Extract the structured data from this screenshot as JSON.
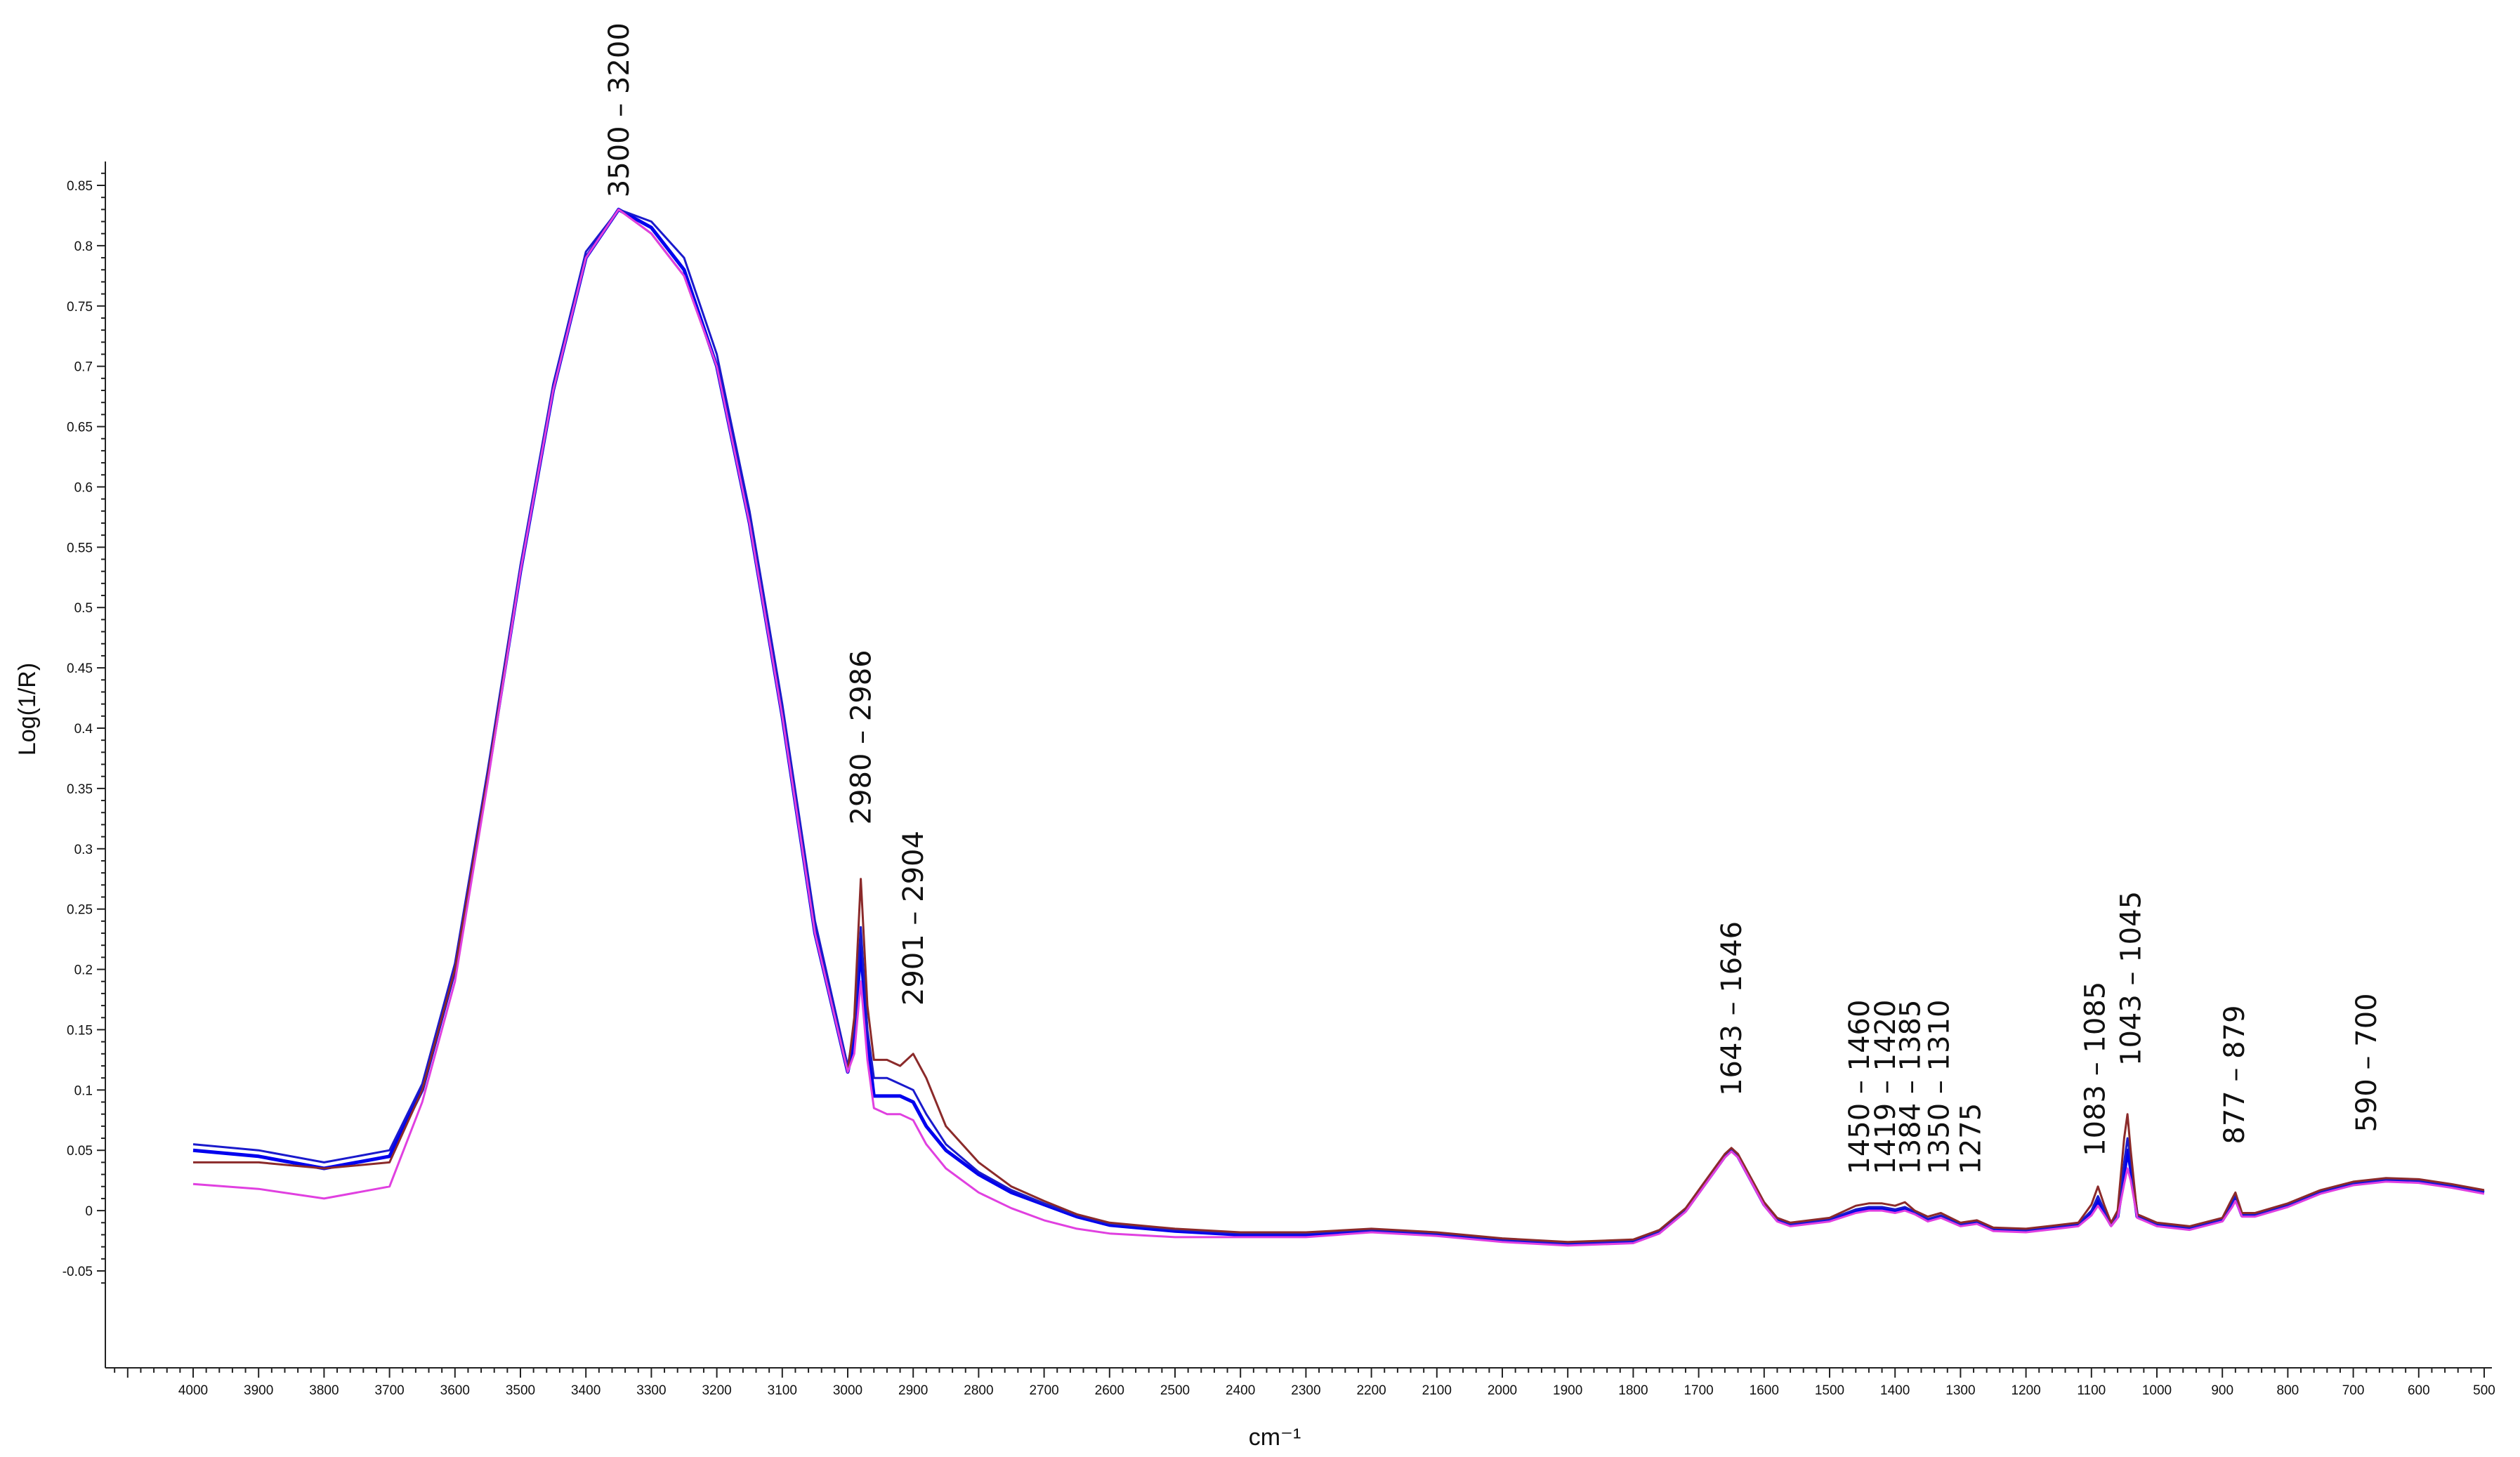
{
  "chart_data": {
    "type": "line",
    "title": "",
    "xlabel": "cm⁻¹",
    "ylabel": "Log(1/R)",
    "x_reversed": true,
    "xlim": [
      4000,
      500
    ],
    "ylim": [
      -0.05,
      0.85
    ],
    "grid": false,
    "legend": "none",
    "x_ticks": [
      4000,
      3900,
      3800,
      3700,
      3600,
      3500,
      3400,
      3300,
      3200,
      3100,
      3000,
      2900,
      2800,
      2700,
      2600,
      2500,
      2400,
      2300,
      2200,
      2100,
      2000,
      1900,
      1800,
      1700,
      1600,
      1500,
      1400,
      1300,
      1200,
      1100,
      1000,
      900,
      800,
      700,
      600,
      500
    ],
    "x_tick_labels": [
      "4000",
      "3900",
      "3800",
      "3700",
      "3600",
      "3500",
      "3400",
      "3300",
      "3200",
      "3100",
      "3000",
      "2900",
      "2800",
      "2700",
      "2600",
      "2500",
      "2400",
      "2300",
      "2200",
      "2100",
      "2000",
      "1900",
      "1800",
      "1700",
      "1600",
      "1500",
      "1400",
      "1300",
      "1200",
      "1100",
      "1000",
      "900",
      "800",
      "700",
      "600",
      "500"
    ],
    "y_ticks": [
      -0.05,
      0,
      0.05,
      0.1,
      0.15,
      0.2,
      0.25,
      0.3,
      0.35,
      0.4,
      0.45,
      0.5,
      0.55,
      0.6,
      0.65,
      0.7,
      0.75,
      0.8,
      0.85
    ],
    "y_tick_labels": [
      "-0.05",
      "0",
      "0.05",
      "0.1",
      "0.15",
      "0.2",
      "0.25",
      "0.3",
      "0.35",
      "0.4",
      "0.45",
      "0.5",
      "0.55",
      "0.6",
      "0.65",
      "0.7",
      "0.75",
      "0.8",
      "0.85"
    ],
    "annotations": [
      {
        "text": "3500 – 3200",
        "x": 3350,
        "y": 0.84
      },
      {
        "text": "2980 – 2986",
        "x": 2980,
        "y": 0.32
      },
      {
        "text": "2901 – 2904",
        "x": 2900,
        "y": 0.17
      },
      {
        "text": "1643 – 1646",
        "x": 1650,
        "y": 0.095
      },
      {
        "text": "1450 – 1460",
        "x": 1455,
        "y": 0.03
      },
      {
        "text": "1419 – 1420",
        "x": 1415,
        "y": 0.03
      },
      {
        "text": "1384 – 1385",
        "x": 1377,
        "y": 0.03
      },
      {
        "text": "1350 – 1310",
        "x": 1333,
        "y": 0.03
      },
      {
        "text": "1275",
        "x": 1285,
        "y": 0.03
      },
      {
        "text": "1083 – 1085",
        "x": 1095,
        "y": 0.045
      },
      {
        "text": "1043 – 1045",
        "x": 1040,
        "y": 0.12
      },
      {
        "text": "877 – 879",
        "x": 882,
        "y": 0.055
      },
      {
        "text": "590 – 700",
        "x": 680,
        "y": 0.065
      }
    ],
    "series": [
      {
        "color": "#0000ee",
        "x": [
          4000,
          3900,
          3800,
          3700,
          3650,
          3600,
          3550,
          3500,
          3450,
          3400,
          3350,
          3300,
          3250,
          3200,
          3150,
          3100,
          3050,
          3000,
          2990,
          2980,
          2970,
          2960,
          2940,
          2920,
          2900,
          2880,
          2850,
          2800,
          2750,
          2700,
          2650,
          2600,
          2500,
          2400,
          2300,
          2200,
          2100,
          2000,
          1900,
          1800,
          1760,
          1720,
          1700,
          1680,
          1660,
          1650,
          1640,
          1620,
          1600,
          1580,
          1560,
          1500,
          1460,
          1440,
          1420,
          1400,
          1385,
          1370,
          1350,
          1330,
          1300,
          1275,
          1250,
          1200,
          1120,
          1100,
          1090,
          1080,
          1070,
          1060,
          1050,
          1045,
          1040,
          1030,
          1000,
          950,
          900,
          885,
          880,
          870,
          850,
          800,
          750,
          700,
          650,
          600,
          550,
          500
        ],
        "y": [
          0.05,
          0.045,
          0.035,
          0.045,
          0.1,
          0.2,
          0.36,
          0.53,
          0.68,
          0.79,
          0.83,
          0.815,
          0.78,
          0.7,
          0.57,
          0.41,
          0.23,
          0.115,
          0.14,
          0.22,
          0.14,
          0.095,
          0.095,
          0.095,
          0.09,
          0.07,
          0.05,
          0.03,
          0.015,
          0.005,
          -0.005,
          -0.012,
          -0.017,
          -0.02,
          -0.02,
          -0.017,
          -0.02,
          -0.025,
          -0.028,
          -0.026,
          -0.018,
          0.0,
          0.015,
          0.03,
          0.045,
          0.05,
          0.045,
          0.025,
          0.005,
          -0.008,
          -0.012,
          -0.008,
          0.0,
          0.002,
          0.002,
          0.0,
          0.002,
          -0.002,
          -0.008,
          -0.005,
          -0.012,
          -0.01,
          -0.016,
          -0.017,
          -0.012,
          -0.002,
          0.008,
          -0.002,
          -0.012,
          -0.005,
          0.03,
          0.05,
          0.035,
          -0.005,
          -0.012,
          -0.015,
          -0.008,
          0.005,
          0.01,
          -0.004,
          -0.004,
          0.004,
          0.015,
          0.022,
          0.025,
          0.024,
          0.02,
          0.015
        ]
      },
      {
        "color": "#1a1acc",
        "x": [
          4000,
          3900,
          3800,
          3700,
          3650,
          3600,
          3550,
          3500,
          3450,
          3400,
          3350,
          3300,
          3250,
          3200,
          3150,
          3100,
          3050,
          3000,
          2990,
          2980,
          2970,
          2960,
          2940,
          2920,
          2900,
          2880,
          2850,
          2800,
          2750,
          2700,
          2650,
          2600,
          2500,
          2400,
          2300,
          2200,
          2100,
          2000,
          1900,
          1800,
          1760,
          1720,
          1700,
          1680,
          1660,
          1650,
          1640,
          1620,
          1600,
          1580,
          1560,
          1500,
          1460,
          1440,
          1420,
          1400,
          1385,
          1370,
          1350,
          1330,
          1300,
          1275,
          1250,
          1200,
          1120,
          1100,
          1090,
          1080,
          1070,
          1060,
          1050,
          1045,
          1040,
          1030,
          1000,
          950,
          900,
          885,
          880,
          870,
          850,
          800,
          750,
          700,
          650,
          600,
          550,
          500
        ],
        "y": [
          0.055,
          0.05,
          0.04,
          0.05,
          0.105,
          0.205,
          0.365,
          0.535,
          0.685,
          0.795,
          0.83,
          0.82,
          0.79,
          0.71,
          0.58,
          0.42,
          0.24,
          0.12,
          0.15,
          0.235,
          0.15,
          0.11,
          0.11,
          0.105,
          0.1,
          0.08,
          0.055,
          0.032,
          0.017,
          0.006,
          -0.004,
          -0.011,
          -0.016,
          -0.019,
          -0.019,
          -0.016,
          -0.019,
          -0.024,
          -0.027,
          -0.025,
          -0.017,
          0.001,
          0.016,
          0.031,
          0.046,
          0.051,
          0.046,
          0.026,
          0.006,
          -0.007,
          -0.011,
          -0.007,
          0.001,
          0.003,
          0.003,
          0.001,
          0.003,
          -0.001,
          -0.007,
          -0.004,
          -0.011,
          -0.009,
          -0.015,
          -0.016,
          -0.011,
          0.0,
          0.012,
          0.0,
          -0.011,
          -0.003,
          0.04,
          0.06,
          0.042,
          -0.004,
          -0.011,
          -0.014,
          -0.007,
          0.007,
          0.012,
          -0.003,
          -0.003,
          0.005,
          0.016,
          0.023,
          0.026,
          0.025,
          0.021,
          0.016
        ]
      },
      {
        "color": "#8b2a2a",
        "x": [
          4000,
          3900,
          3800,
          3700,
          3650,
          3600,
          3550,
          3500,
          3450,
          3400,
          3350,
          3300,
          3250,
          3200,
          3150,
          3100,
          3050,
          3000,
          2990,
          2980,
          2970,
          2960,
          2940,
          2920,
          2900,
          2880,
          2850,
          2800,
          2750,
          2700,
          2650,
          2600,
          2500,
          2400,
          2300,
          2200,
          2100,
          2000,
          1900,
          1800,
          1760,
          1720,
          1700,
          1680,
          1660,
          1650,
          1640,
          1620,
          1600,
          1580,
          1560,
          1500,
          1460,
          1440,
          1420,
          1400,
          1385,
          1370,
          1350,
          1330,
          1300,
          1275,
          1250,
          1200,
          1120,
          1100,
          1090,
          1080,
          1070,
          1060,
          1050,
          1045,
          1040,
          1030,
          1000,
          950,
          900,
          885,
          880,
          870,
          850,
          800,
          750,
          700,
          650,
          600,
          550,
          500
        ],
        "y": [
          0.04,
          0.04,
          0.035,
          0.04,
          0.1,
          0.2,
          0.36,
          0.53,
          0.68,
          0.79,
          0.83,
          0.81,
          0.775,
          0.7,
          0.57,
          0.41,
          0.23,
          0.115,
          0.16,
          0.275,
          0.17,
          0.125,
          0.125,
          0.12,
          0.13,
          0.11,
          0.07,
          0.04,
          0.02,
          0.008,
          -0.003,
          -0.01,
          -0.015,
          -0.018,
          -0.018,
          -0.015,
          -0.018,
          -0.023,
          -0.026,
          -0.024,
          -0.016,
          0.002,
          0.017,
          0.032,
          0.047,
          0.052,
          0.047,
          0.027,
          0.007,
          -0.006,
          -0.01,
          -0.006,
          0.004,
          0.006,
          0.006,
          0.004,
          0.007,
          0.0,
          -0.005,
          -0.002,
          -0.01,
          -0.008,
          -0.014,
          -0.015,
          -0.01,
          0.005,
          0.02,
          0.004,
          -0.01,
          0.0,
          0.06,
          0.08,
          0.05,
          -0.003,
          -0.01,
          -0.013,
          -0.006,
          0.01,
          0.015,
          -0.002,
          -0.002,
          0.006,
          0.017,
          0.024,
          0.027,
          0.026,
          0.022,
          0.017
        ]
      },
      {
        "color": "#e040e0",
        "x": [
          4000,
          3900,
          3800,
          3700,
          3650,
          3600,
          3550,
          3500,
          3450,
          3400,
          3350,
          3300,
          3250,
          3200,
          3150,
          3100,
          3050,
          3000,
          2990,
          2980,
          2970,
          2960,
          2940,
          2920,
          2900,
          2880,
          2850,
          2800,
          2750,
          2700,
          2650,
          2600,
          2500,
          2400,
          2300,
          2200,
          2100,
          2000,
          1900,
          1800,
          1760,
          1720,
          1700,
          1680,
          1660,
          1650,
          1640,
          1620,
          1600,
          1580,
          1560,
          1500,
          1460,
          1440,
          1420,
          1400,
          1385,
          1370,
          1350,
          1330,
          1300,
          1275,
          1250,
          1200,
          1120,
          1100,
          1090,
          1080,
          1070,
          1060,
          1050,
          1045,
          1040,
          1030,
          1000,
          950,
          900,
          885,
          880,
          870,
          850,
          800,
          750,
          700,
          650,
          600,
          550,
          500
        ],
        "y": [
          0.022,
          0.018,
          0.01,
          0.02,
          0.09,
          0.19,
          0.355,
          0.53,
          0.68,
          0.79,
          0.83,
          0.81,
          0.775,
          0.7,
          0.57,
          0.41,
          0.23,
          0.115,
          0.13,
          0.19,
          0.125,
          0.085,
          0.08,
          0.08,
          0.075,
          0.055,
          0.035,
          0.015,
          0.002,
          -0.008,
          -0.015,
          -0.019,
          -0.022,
          -0.022,
          -0.022,
          -0.018,
          -0.021,
          -0.026,
          -0.029,
          -0.027,
          -0.019,
          -0.001,
          0.014,
          0.029,
          0.044,
          0.049,
          0.044,
          0.024,
          0.004,
          -0.009,
          -0.013,
          -0.009,
          -0.002,
          0.0,
          0.0,
          -0.002,
          0.0,
          -0.003,
          -0.009,
          -0.006,
          -0.013,
          -0.011,
          -0.017,
          -0.018,
          -0.013,
          -0.004,
          0.004,
          -0.004,
          -0.013,
          -0.006,
          0.022,
          0.035,
          0.025,
          -0.006,
          -0.013,
          -0.016,
          -0.009,
          0.003,
          0.008,
          -0.005,
          -0.005,
          0.003,
          0.014,
          0.021,
          0.024,
          0.023,
          0.019,
          0.014
        ]
      }
    ]
  }
}
